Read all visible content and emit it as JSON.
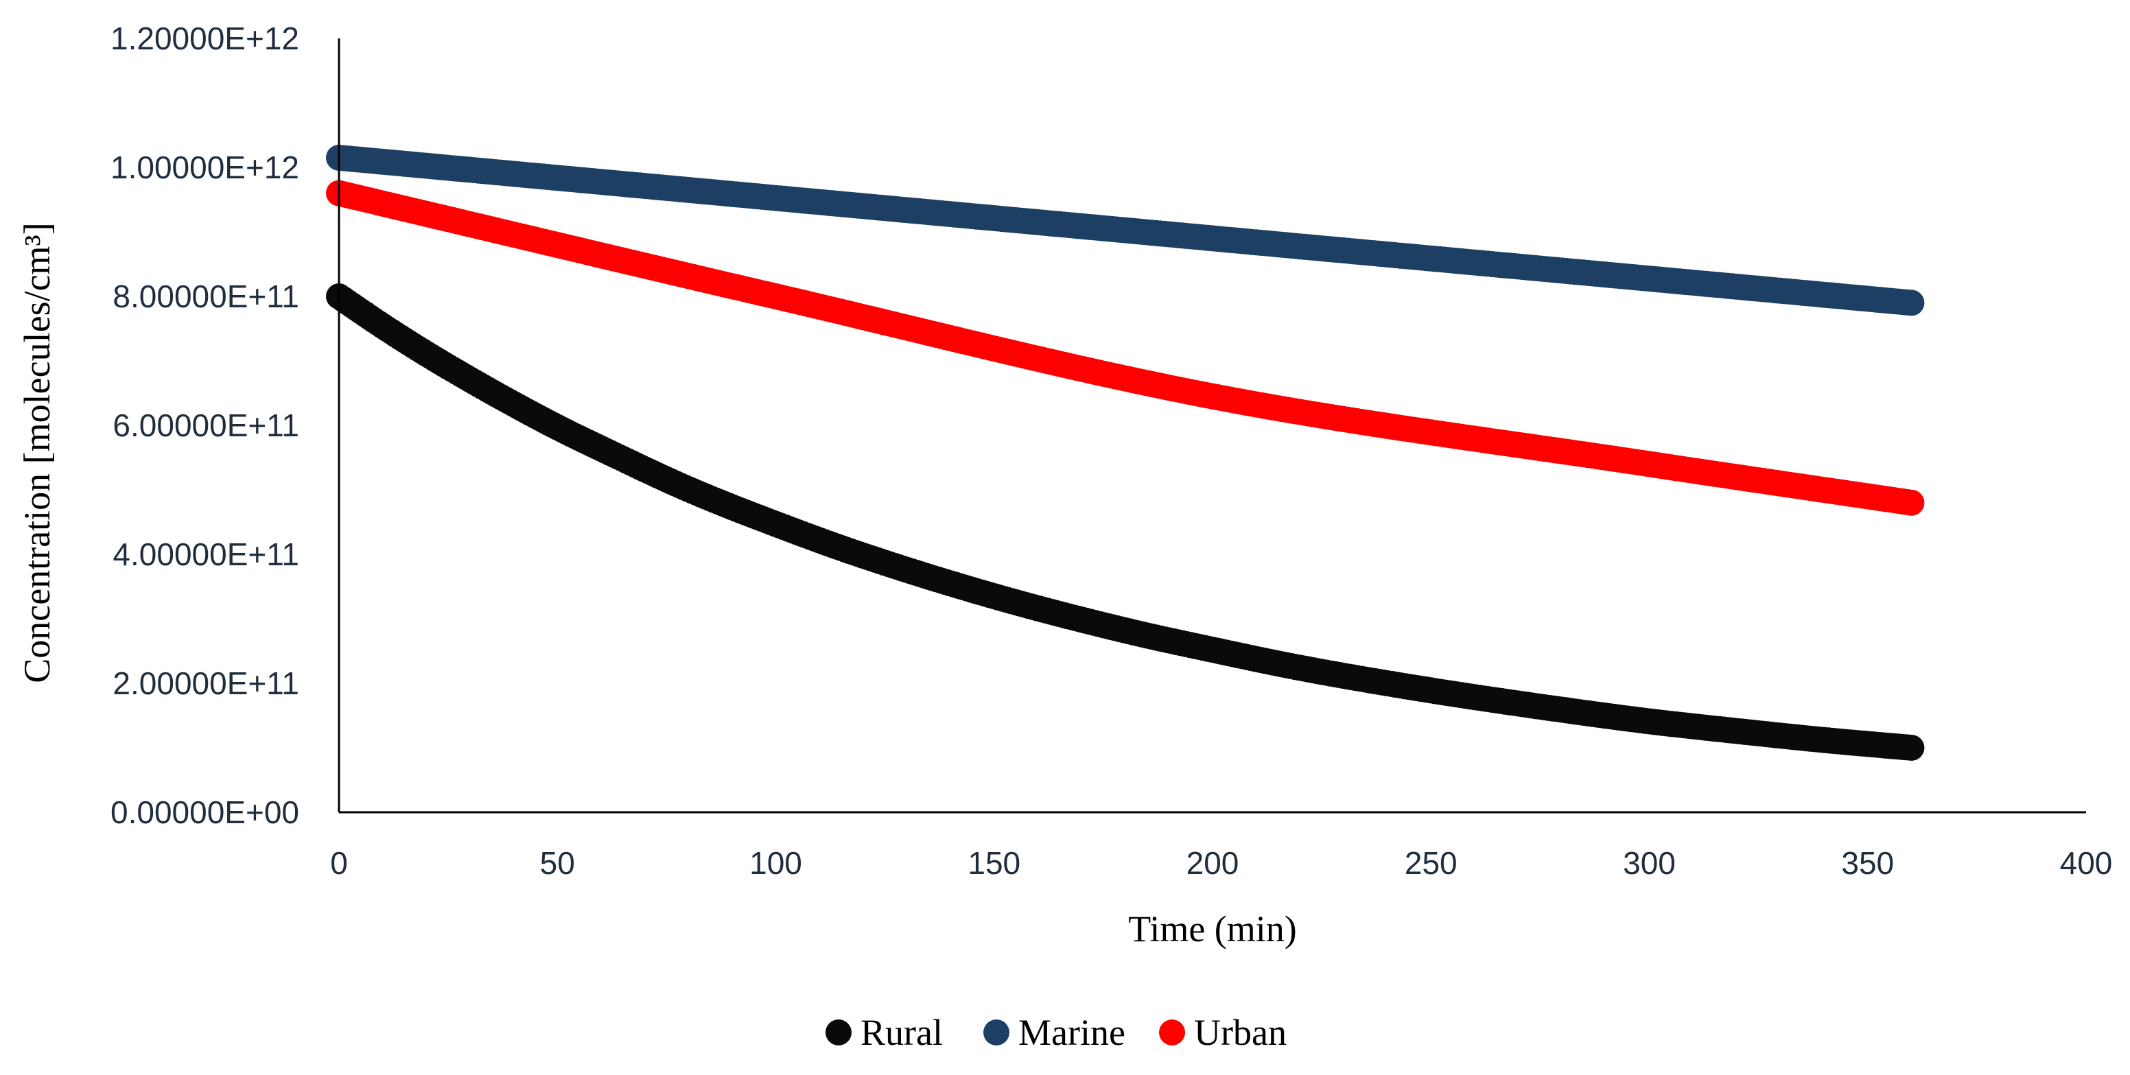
{
  "chart_data": {
    "type": "line",
    "xlabel": "Time (min)",
    "ylabel": "Concentration [molecules/cm³]",
    "xlim": [
      0,
      400
    ],
    "ylim": [
      0,
      1200000000000.0
    ],
    "x_ticks": [
      0,
      50,
      100,
      150,
      200,
      250,
      300,
      350,
      400
    ],
    "x_tick_labels": [
      "0",
      "50",
      "100",
      "150",
      "200",
      "250",
      "300",
      "350",
      "400"
    ],
    "y_ticks": [
      0,
      200000000000.0,
      400000000000.0,
      600000000000.0,
      800000000000.0,
      1000000000000.0,
      1200000000000.0
    ],
    "y_tick_labels": [
      "0.00000E+00",
      "2.00000E+11",
      "4.00000E+11",
      "6.00000E+11",
      "8.00000E+11",
      "1.00000E+12",
      "1.20000E+12"
    ],
    "grid": false,
    "legend_position": "bottom-center",
    "series": [
      {
        "name": "Rural",
        "color": "#0a0a0a",
        "x": [
          0,
          10,
          20,
          30,
          40,
          50,
          60,
          80,
          100,
          120,
          150,
          180,
          200,
          220,
          250,
          280,
          300,
          320,
          340,
          360
        ],
        "values": [
          800000000000.0,
          754000000000.0,
          711000000000.0,
          671000000000.0,
          633000000000.0,
          597000000000.0,
          564000000000.0,
          501000000000.0,
          447000000000.0,
          398000000000.0,
          335000000000.0,
          282000000000.0,
          252000000000.0,
          224000000000.0,
          189000000000.0,
          159000000000.0,
          141000000000.0,
          126000000000.0,
          112000000000.0,
          100000000000.0
        ]
      },
      {
        "name": "Marine",
        "color": "#1c3f63",
        "x": [
          0,
          360
        ],
        "values": [
          1015000000000.0,
          790000000000.0
        ]
      },
      {
        "name": "Urban",
        "color": "#ff0000",
        "x": [
          0,
          100,
          200,
          300,
          360
        ],
        "values": [
          960000000000.0,
          800000000000.0,
          645000000000.0,
          540000000000.0,
          480000000000.0
        ]
      }
    ]
  }
}
